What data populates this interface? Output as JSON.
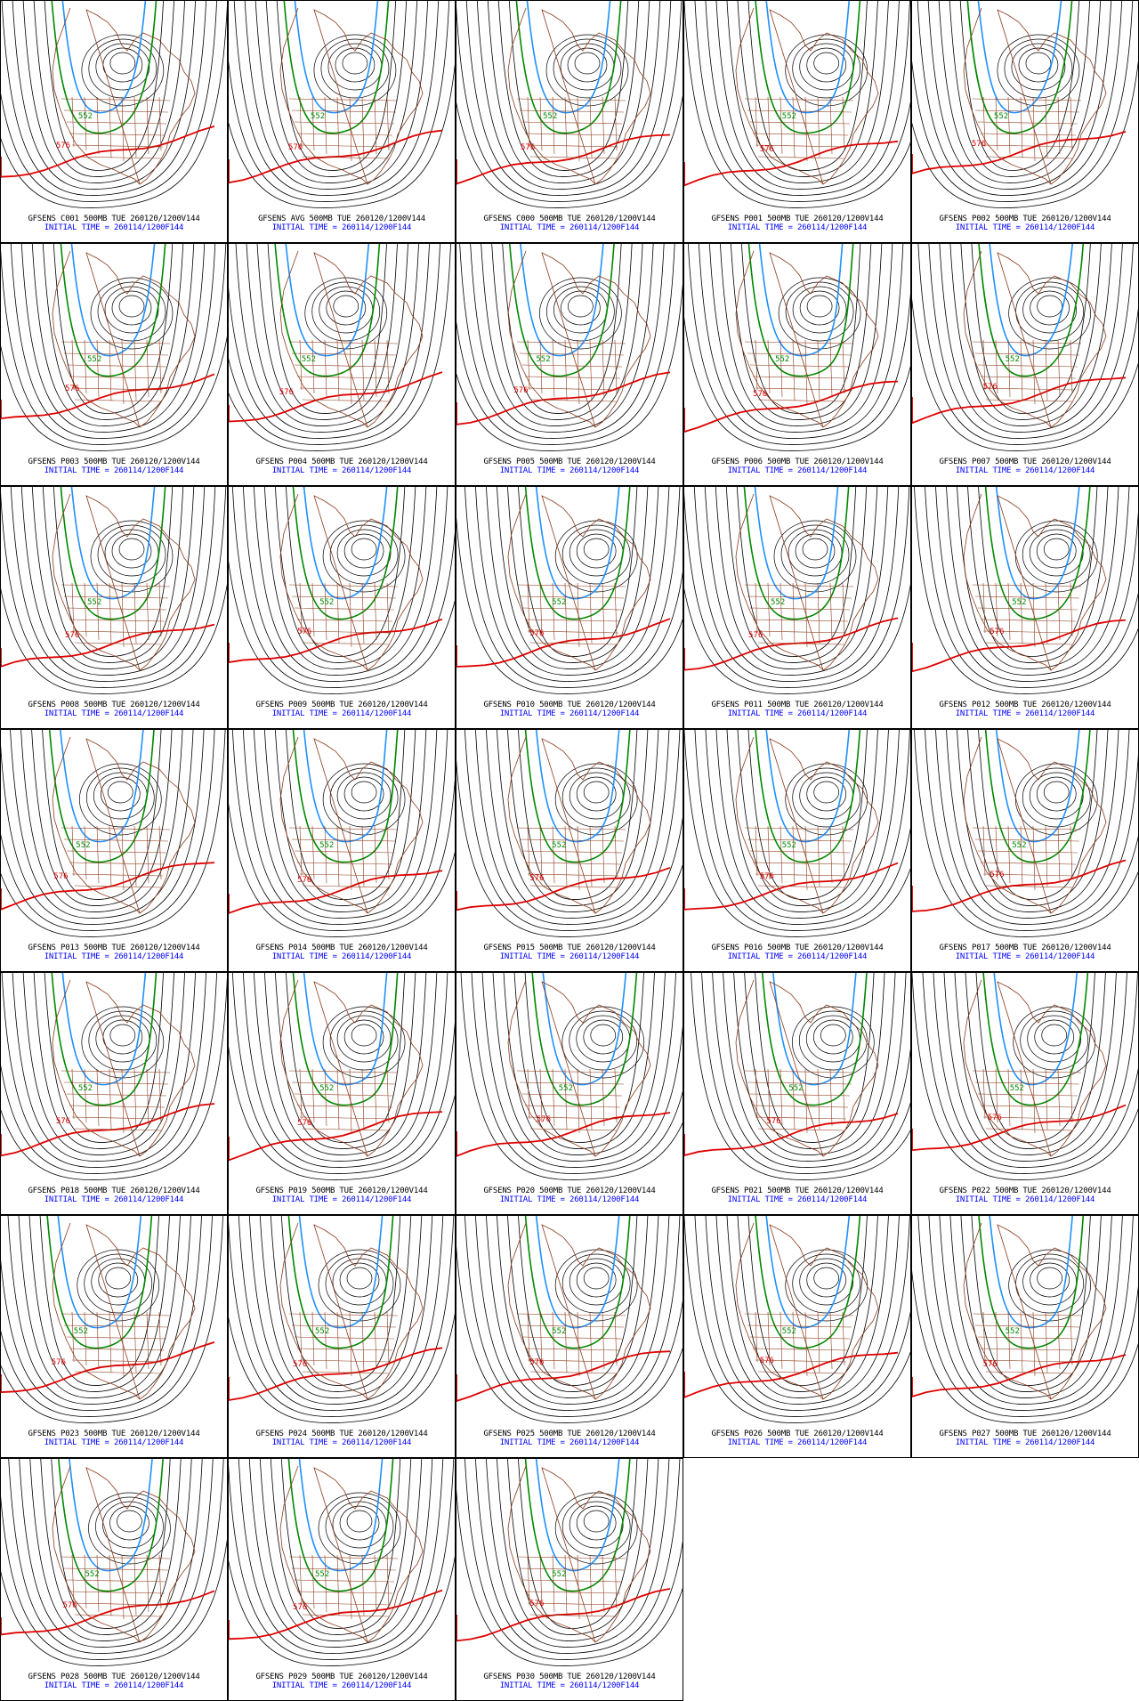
{
  "colors": {
    "contour_black": "#000000",
    "contour_552": "#008800",
    "contour_540": "#1e90ff",
    "contour_576": "#e00000",
    "coastline": "#8b3a1a",
    "caption_top": "#000000",
    "caption_bottom": "#0000ff"
  },
  "contour_labels": {
    "green": "552",
    "red": "576"
  },
  "initial_time": "INITIAL TIME = 260114/1200F144",
  "panels": [
    {
      "title": "GFSENS C001 500MB TUE 260120/1200V144",
      "trough": 0.46,
      "ridge": 0.0
    },
    {
      "title": "GFSENS AVG 500MB TUE 260120/1200V144",
      "trough": 0.48,
      "ridge": 0.1
    },
    {
      "title": "GFSENS C000 500MB TUE 260120/1200V144",
      "trough": 0.5,
      "ridge": 0.1
    },
    {
      "title": "GFSENS P001 500MB TUE 260120/1200V144",
      "trough": 0.55,
      "ridge": 0.2
    },
    {
      "title": "GFSENS P002 500MB TUE 260120/1200V144",
      "trough": 0.48,
      "ridge": -0.1
    },
    {
      "title": "GFSENS P003 500MB TUE 260120/1200V144",
      "trough": 0.5,
      "ridge": 0.0
    },
    {
      "title": "GFSENS P004 500MB TUE 260120/1200V144",
      "trough": 0.44,
      "ridge": 0.2
    },
    {
      "title": "GFSENS P005 500MB TUE 260120/1200V144",
      "trough": 0.47,
      "ridge": 0.1
    },
    {
      "title": "GFSENS P006 500MB TUE 260120/1200V144",
      "trough": 0.52,
      "ridge": 0.3
    },
    {
      "title": "GFSENS P007 500MB TUE 260120/1200V144",
      "trough": 0.53,
      "ridge": -0.1
    },
    {
      "title": "GFSENS P008 500MB TUE 260120/1200V144",
      "trough": 0.5,
      "ridge": 0.2
    },
    {
      "title": "GFSENS P009 500MB TUE 260120/1200V144",
      "trough": 0.52,
      "ridge": 0.0
    },
    {
      "title": "GFSENS P010 500MB TUE 260120/1200V144",
      "trough": 0.54,
      "ridge": 0.1
    },
    {
      "title": "GFSENS P011 500MB TUE 260120/1200V144",
      "trough": 0.5,
      "ridge": 0.2
    },
    {
      "title": "GFSENS P012 500MB TUE 260120/1200V144",
      "trough": 0.56,
      "ridge": 0.0
    },
    {
      "title": "GFSENS P013 500MB TUE 260120/1200V144",
      "trough": 0.45,
      "ridge": 0.1
    },
    {
      "title": "GFSENS P014 500MB TUE 260120/1200V144",
      "trough": 0.52,
      "ridge": 0.3
    },
    {
      "title": "GFSENS P015 500MB TUE 260120/1200V144",
      "trough": 0.54,
      "ridge": 0.2
    },
    {
      "title": "GFSENS P016 500MB TUE 260120/1200V144",
      "trough": 0.55,
      "ridge": 0.1
    },
    {
      "title": "GFSENS P017 500MB TUE 260120/1200V144",
      "trough": 0.56,
      "ridge": 0.0
    },
    {
      "title": "GFSENS P018 500MB TUE 260120/1200V144",
      "trough": 0.46,
      "ridge": 0.2
    },
    {
      "title": "GFSENS P019 500MB TUE 260120/1200V144",
      "trough": 0.52,
      "ridge": 0.3
    },
    {
      "title": "GFSENS P020 500MB TUE 260120/1200V144",
      "trough": 0.57,
      "ridge": 0.1
    },
    {
      "title": "GFSENS P021 500MB TUE 260120/1200V144",
      "trough": 0.58,
      "ridge": 0.2
    },
    {
      "title": "GFSENS P022 500MB TUE 260120/1200V144",
      "trough": 0.55,
      "ridge": 0.0
    },
    {
      "title": "GFSENS P023 500MB TUE 260120/1200V144",
      "trough": 0.44,
      "ridge": 0.1
    },
    {
      "title": "GFSENS P024 500MB TUE 260120/1200V144",
      "trough": 0.5,
      "ridge": 0.2
    },
    {
      "title": "GFSENS P025 500MB TUE 260120/1200V144",
      "trough": 0.54,
      "ridge": 0.1
    },
    {
      "title": "GFSENS P026 500MB TUE 260120/1200V144",
      "trough": 0.55,
      "ridge": 0.0
    },
    {
      "title": "GFSENS P027 500MB TUE 260120/1200V144",
      "trough": 0.53,
      "ridge": 0.2
    },
    {
      "title": "GFSENS P028 500MB TUE 260120/1200V144",
      "trough": 0.49,
      "ridge": 0.1
    },
    {
      "title": "GFSENS P029 500MB TUE 260120/1200V144",
      "trough": 0.5,
      "ridge": 0.2
    },
    {
      "title": "GFSENS P030 500MB TUE 260120/1200V144",
      "trough": 0.54,
      "ridge": 0.0
    }
  ]
}
